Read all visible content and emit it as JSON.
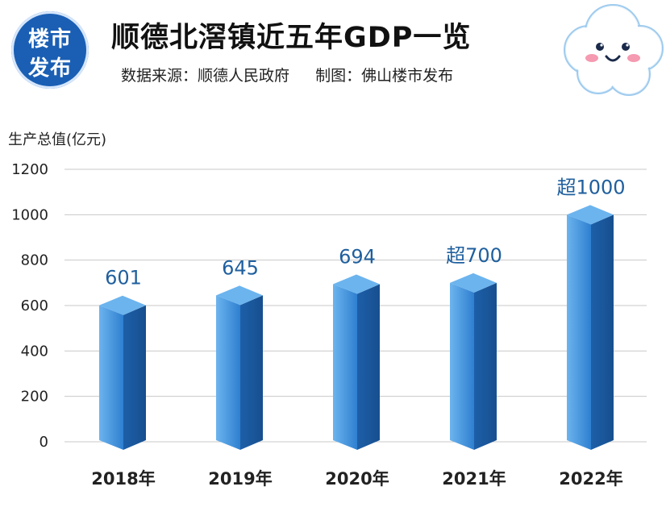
{
  "header": {
    "logo_line1": "楼市",
    "logo_line2": "发布",
    "title": "顺德北滘镇近五年GDP一览",
    "source": "数据来源：顺德人民政府",
    "credit": "制图：佛山楼市发布"
  },
  "colors": {
    "bar_front": "#2e7fd0",
    "bar_side": "#1d5fa8",
    "bar_top": "#6cb4ee",
    "value_label": "#1f5f9e",
    "logo_bg": "#1a5fb4"
  },
  "chart_data": {
    "type": "bar",
    "title": "顺德北滘镇近五年GDP一览",
    "ylabel": "生产总值(亿元)",
    "xlabel": "",
    "ylim": [
      0,
      1200
    ],
    "yticks": [
      0,
      200,
      400,
      600,
      800,
      1000,
      1200
    ],
    "categories": [
      "2018年",
      "2019年",
      "2020年",
      "2021年",
      "2022年"
    ],
    "values": [
      601,
      645,
      694,
      700,
      1000
    ],
    "value_labels": [
      "601",
      "645",
      "694",
      "超700",
      "超1000"
    ],
    "grid": true,
    "style": "3d-column"
  }
}
